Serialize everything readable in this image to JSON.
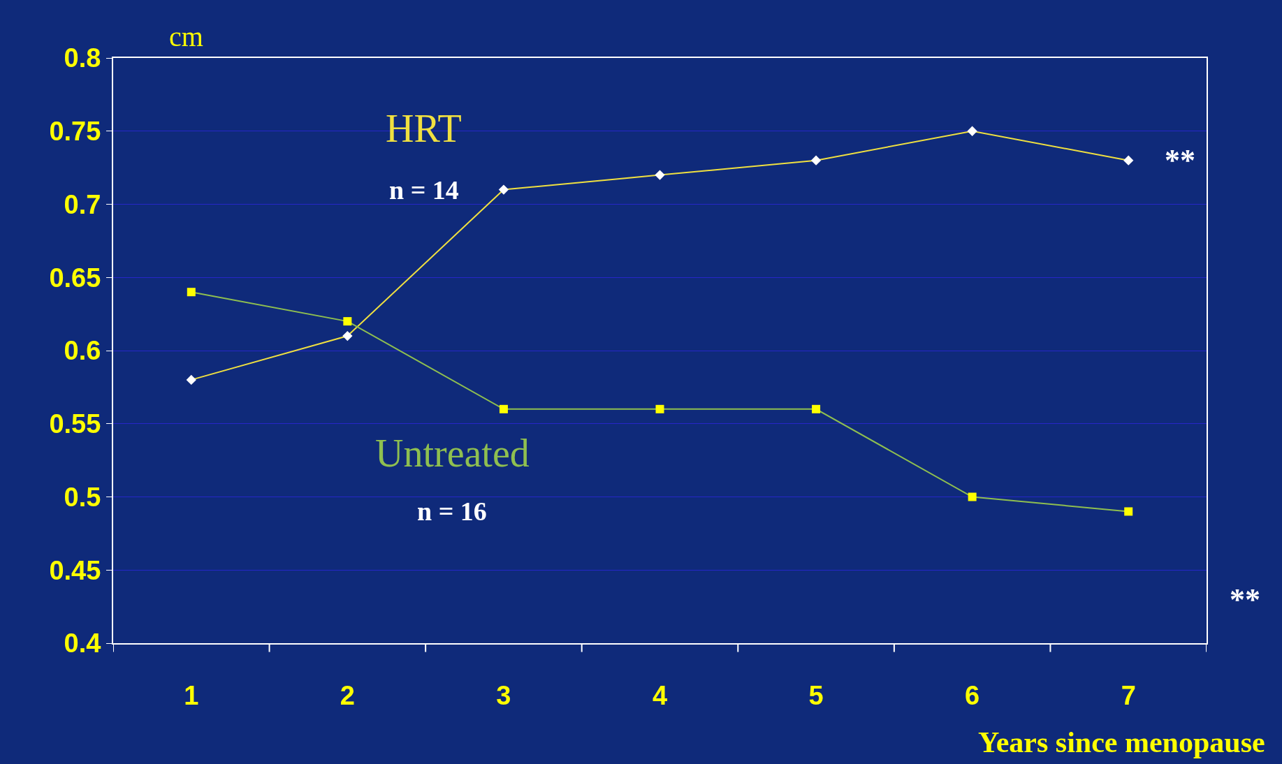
{
  "chart_data": {
    "type": "line",
    "ylabel": "cm",
    "xlabel": "Years since menopause",
    "categories": [
      "1",
      "2",
      "3",
      "4",
      "5",
      "6",
      "7"
    ],
    "series": [
      {
        "name": "HRT",
        "color": "#f0e040",
        "colors": [
          "#ffffff",
          "#ffffff",
          "#ffffff",
          "#ffffff",
          "#ffffff",
          "#ffffff",
          "#ffffff"
        ],
        "marker": "diamond",
        "values": [
          0.58,
          0.61,
          0.71,
          0.72,
          0.73,
          0.75,
          0.73
        ]
      },
      {
        "name": "Untreated",
        "color": "#8fbf50",
        "colors": [
          "#ffff00",
          "#ffff00",
          "#ffff00",
          "#ffff00",
          "#ffff00",
          "#ffff00",
          "#ffff00"
        ],
        "marker": "square",
        "values": [
          0.64,
          0.62,
          0.56,
          0.56,
          0.56,
          0.5,
          0.49
        ]
      }
    ],
    "annotations": [
      "n = 14",
      "n = 16",
      {
        "text": "**",
        "x": "7",
        "y": 0.73
      },
      "**"
    ],
    "ylim": [
      0.4,
      0.8
    ],
    "yticks": [
      0.4,
      0.45,
      0.5,
      0.55,
      0.6,
      0.65,
      0.7,
      0.75,
      0.8
    ],
    "grid": "y",
    "legend": false,
    "line_style": "solid"
  }
}
